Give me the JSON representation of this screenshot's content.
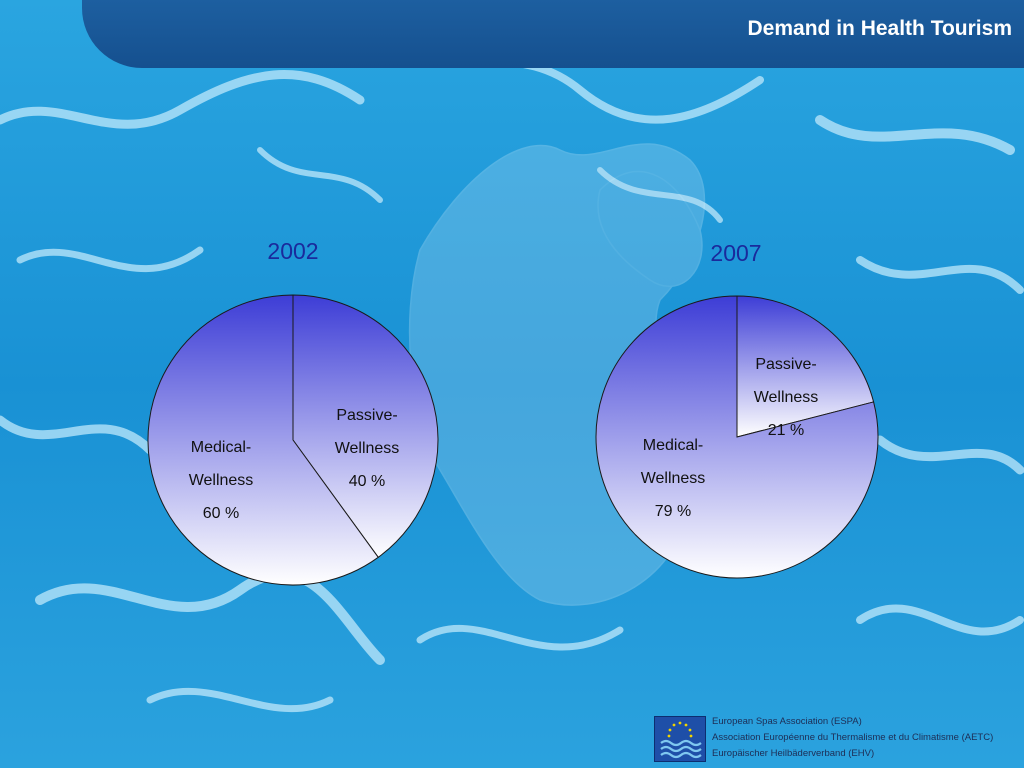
{
  "header": {
    "title": "Demand in Health Tourism"
  },
  "chart_data": [
    {
      "type": "pie",
      "title": "2002",
      "slices": [
        {
          "label": "Passive-Wellness",
          "label_lines": [
            "Passive-",
            "Wellness"
          ],
          "value": 40,
          "value_text": "40 %"
        },
        {
          "label": "Medical-Wellness",
          "label_lines": [
            "Medical-",
            "Wellness"
          ],
          "value": 60,
          "value_text": "60 %"
        }
      ]
    },
    {
      "type": "pie",
      "title": "2007",
      "slices": [
        {
          "label": "Passive-Wellness",
          "label_lines": [
            "Passive-",
            "Wellness"
          ],
          "value": 21,
          "value_text": "21 %"
        },
        {
          "label": "Medical-Wellness",
          "label_lines": [
            "Medical-",
            "Wellness"
          ],
          "value": 79,
          "value_text": "79 %"
        }
      ]
    }
  ],
  "colors": {
    "header_band": "#15508f",
    "year_title": "#1a2a9c",
    "pie_gradient_top": "#3d3dd6",
    "pie_gradient_bottom": "#ffffff",
    "pie_outline": "#1a1a1a"
  },
  "footer": {
    "logo_icon": "eu-stars-waves-logo",
    "lines": [
      "European Spas Association (ESPA)",
      "Association Européenne du Thermalisme et du Climatisme (AETC)",
      "Europäischer Heilbäderverband (EHV)"
    ]
  }
}
